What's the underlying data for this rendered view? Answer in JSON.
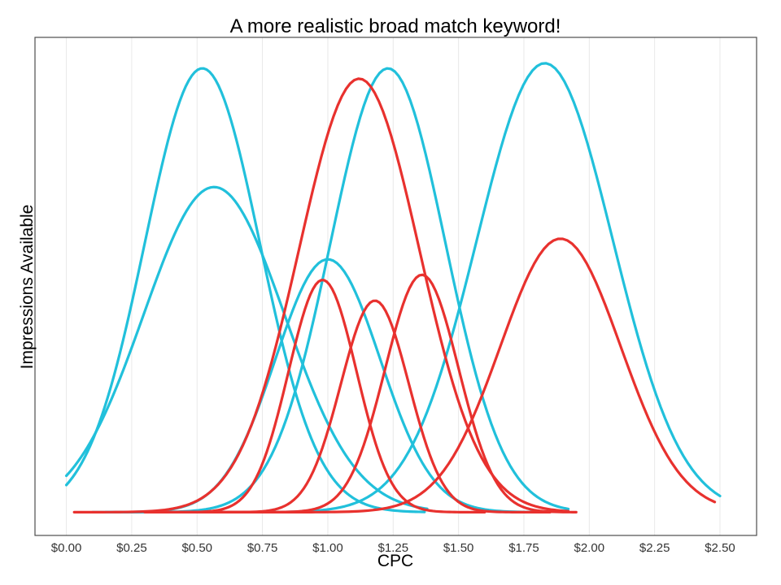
{
  "chart_data": {
    "type": "line",
    "title": "A more realistic broad match keyword!",
    "xlabel": "CPC",
    "ylabel": "Impressions Available",
    "xlim": [
      -0.12,
      2.64
    ],
    "ylim": [
      -0.045,
      0.92
    ],
    "x_ticks": [
      0,
      0.25,
      0.5,
      0.75,
      1.0,
      1.25,
      1.5,
      1.75,
      2.0,
      2.25,
      2.5
    ],
    "x_tick_labels": [
      "$0.00",
      "$0.25",
      "$0.50",
      "$0.75",
      "$1.00",
      "$1.25",
      "$1.50",
      "$1.75",
      "$2.00",
      "$2.25",
      "$2.50"
    ],
    "y_tick_labels_shown": false,
    "grid": "vertical",
    "colors": {
      "cyan": "#21c0db",
      "red": "#e8312e"
    },
    "series": [
      {
        "color": "cyan",
        "peak_x": 0.52,
        "peak_y": 0.86,
        "sd": 0.22,
        "x_range": [
          0.0,
          1.37
        ]
      },
      {
        "color": "cyan",
        "peak_x": 0.565,
        "peak_y": 0.63,
        "sd": 0.27,
        "x_range": [
          0.0,
          1.38
        ]
      },
      {
        "color": "cyan",
        "peak_x": 1.0,
        "peak_y": 0.49,
        "sd": 0.2,
        "x_range": [
          0.1,
          1.8
        ]
      },
      {
        "color": "cyan",
        "peak_x": 1.23,
        "peak_y": 0.86,
        "sd": 0.22,
        "x_range": [
          0.15,
          1.92
        ]
      },
      {
        "color": "cyan",
        "peak_x": 1.83,
        "peak_y": 0.87,
        "sd": 0.26,
        "x_range": [
          0.4,
          2.5
        ]
      },
      {
        "color": "red",
        "peak_x": 1.12,
        "peak_y": 0.84,
        "sd": 0.23,
        "x_range": [
          0.03,
          1.92
        ]
      },
      {
        "color": "red",
        "peak_x": 0.98,
        "peak_y": 0.45,
        "sd": 0.13,
        "x_range": [
          0.35,
          1.6
        ]
      },
      {
        "color": "red",
        "peak_x": 1.18,
        "peak_y": 0.41,
        "sd": 0.13,
        "x_range": [
          0.4,
          1.85
        ]
      },
      {
        "color": "red",
        "peak_x": 1.36,
        "peak_y": 0.46,
        "sd": 0.14,
        "x_range": [
          0.45,
          1.95
        ]
      },
      {
        "color": "red",
        "peak_x": 1.89,
        "peak_y": 0.53,
        "sd": 0.23,
        "x_range": [
          0.3,
          2.48
        ]
      }
    ]
  }
}
